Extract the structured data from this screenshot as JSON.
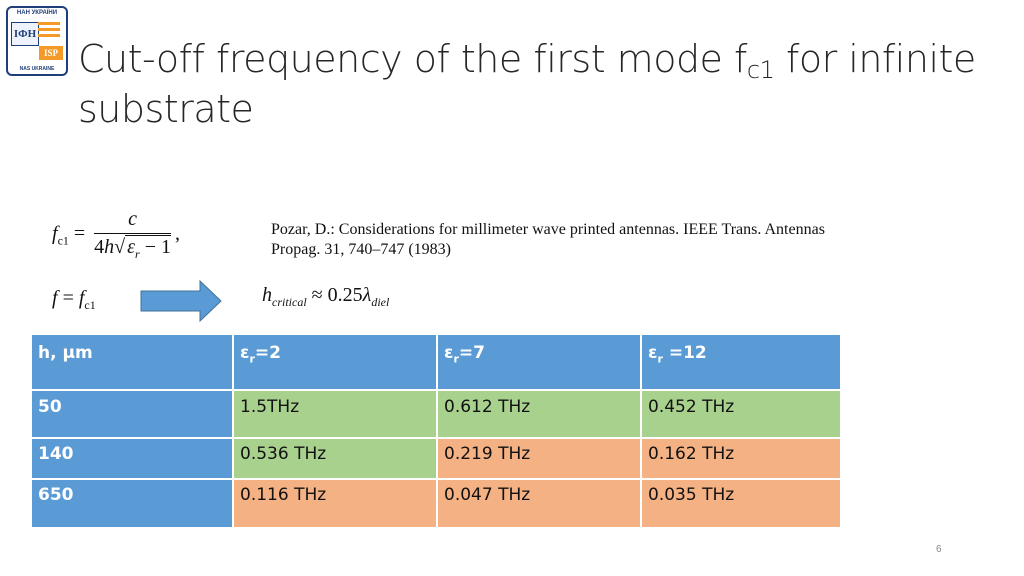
{
  "logo": {
    "top_text": "НАН УКРАЇНИ",
    "left_text": "ІФН",
    "right_text": "ISP",
    "bottom_text": "NAS UKRAINE"
  },
  "title": {
    "main": "Cut-off frequency of the first mode f",
    "sub": "c1",
    "rest": " for infinite substrate"
  },
  "reference": "Pozar, D.: Considerations for millimeter wave printed antennas. IEEE Trans. Antennas Propag. 31, 740–747 (1983)",
  "table": {
    "headers": [
      "h, μm",
      "ε",
      "ε",
      "ε"
    ],
    "header_subs": [
      "",
      "r",
      "r",
      "r"
    ],
    "header_values": [
      "",
      "=2",
      "=7",
      " =12"
    ],
    "rows": [
      {
        "h": "50",
        "cells": [
          "1.5THz",
          "0.612 THz",
          "0.452 THz"
        ]
      },
      {
        "h": "140",
        "cells": [
          "0.536 THz",
          "0.219 THz",
          "0.162 THz"
        ]
      },
      {
        "h": "650",
        "cells": [
          "0.116 THz",
          "0.047 THz",
          "0.035 THz"
        ]
      }
    ]
  },
  "colors": {
    "header": "#5b9bd5",
    "good": "#a9d18e",
    "bad": "#f4b183",
    "arrow": "#5b9bd5"
  },
  "page_number": "6"
}
